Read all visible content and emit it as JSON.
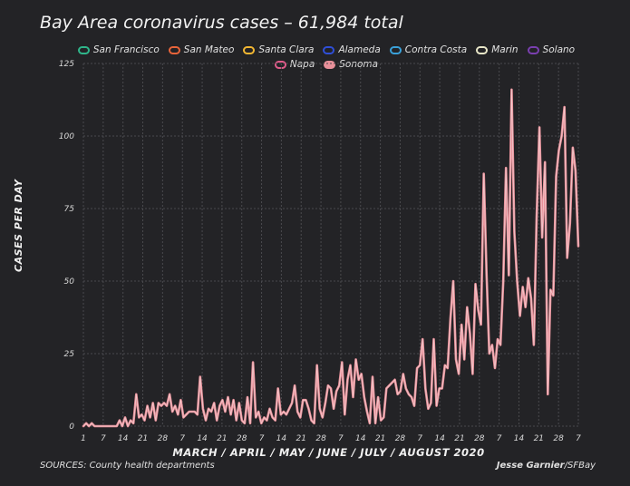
{
  "chart_data": {
    "type": "line",
    "title": "Bay Area coronavirus cases – 61,984 total",
    "ylabel": "CASES PER DAY",
    "xlabel": "MARCH / APRIL / MAY / JUNE / JULY / AUGUST 2020",
    "ylim": [
      0,
      125
    ],
    "yticks": [
      0,
      25,
      50,
      75,
      100,
      125
    ],
    "x_tick_labels": [
      "1",
      "7",
      "14",
      "21",
      "28",
      "7",
      "14",
      "21",
      "28",
      "7",
      "14",
      "21",
      "28",
      "7",
      "14",
      "21",
      "28",
      "7",
      "14",
      "21",
      "28",
      "7",
      "14",
      "21",
      "28",
      "7"
    ],
    "grid": true,
    "legend_position": "top",
    "legend": [
      {
        "name": "San Francisco",
        "color": "#2fb58a"
      },
      {
        "name": "San Mateo",
        "color": "#e8643a"
      },
      {
        "name": "Santa Clara",
        "color": "#f2b632"
      },
      {
        "name": "Alameda",
        "color": "#2f4fd8"
      },
      {
        "name": "Contra Costa",
        "color": "#3aa0d8"
      },
      {
        "name": "Marin",
        "color": "#e8e6c8"
      },
      {
        "name": "Solano",
        "color": "#7a3fb0"
      },
      {
        "name": "Napa",
        "color": "#e05b8a"
      },
      {
        "name": "Sonoma",
        "color": "#e8909a"
      }
    ],
    "series": [
      {
        "name": "Sonoma",
        "color": "#e8909a",
        "values": [
          0,
          1,
          0,
          1,
          0,
          0,
          0,
          0,
          0,
          0,
          0,
          0,
          0,
          2,
          0,
          3,
          0,
          2,
          1,
          11,
          3,
          4,
          2,
          7,
          3,
          8,
          2,
          8,
          7,
          8,
          7,
          11,
          5,
          7,
          4,
          9,
          3,
          4,
          5,
          5,
          5,
          4,
          17,
          6,
          2,
          6,
          5,
          8,
          2,
          7,
          9,
          5,
          10,
          4,
          9,
          2,
          8,
          2,
          1,
          10,
          1,
          22,
          3,
          5,
          1,
          3,
          2,
          6,
          3,
          2,
          13,
          4,
          5,
          4,
          6,
          8,
          14,
          5,
          3,
          9,
          9,
          6,
          2,
          1,
          21,
          6,
          3,
          8,
          14,
          13,
          6,
          12,
          14,
          22,
          4,
          16,
          21,
          10,
          23,
          16,
          18,
          10,
          5,
          1,
          17,
          1,
          10,
          2,
          3,
          13,
          14,
          15,
          16,
          11,
          12,
          18,
          13,
          11,
          10,
          7,
          20,
          21,
          30,
          13,
          6,
          8,
          30,
          7,
          13,
          13,
          21,
          20,
          37,
          50,
          23,
          18,
          35,
          23,
          41,
          32,
          18,
          49,
          40,
          35,
          87,
          52,
          25,
          28,
          20,
          30,
          28,
          50,
          89,
          52,
          116,
          67,
          50,
          38,
          48,
          41,
          51,
          44,
          28,
          72,
          103,
          65,
          91,
          11,
          47,
          45,
          86,
          95,
          100,
          110,
          58,
          70,
          96,
          88,
          62
        ]
      }
    ]
  },
  "footer": {
    "source": "SOURCES: County health departments",
    "credit_author": "Jesse Garnier",
    "credit_outlet": "/SFBay"
  }
}
